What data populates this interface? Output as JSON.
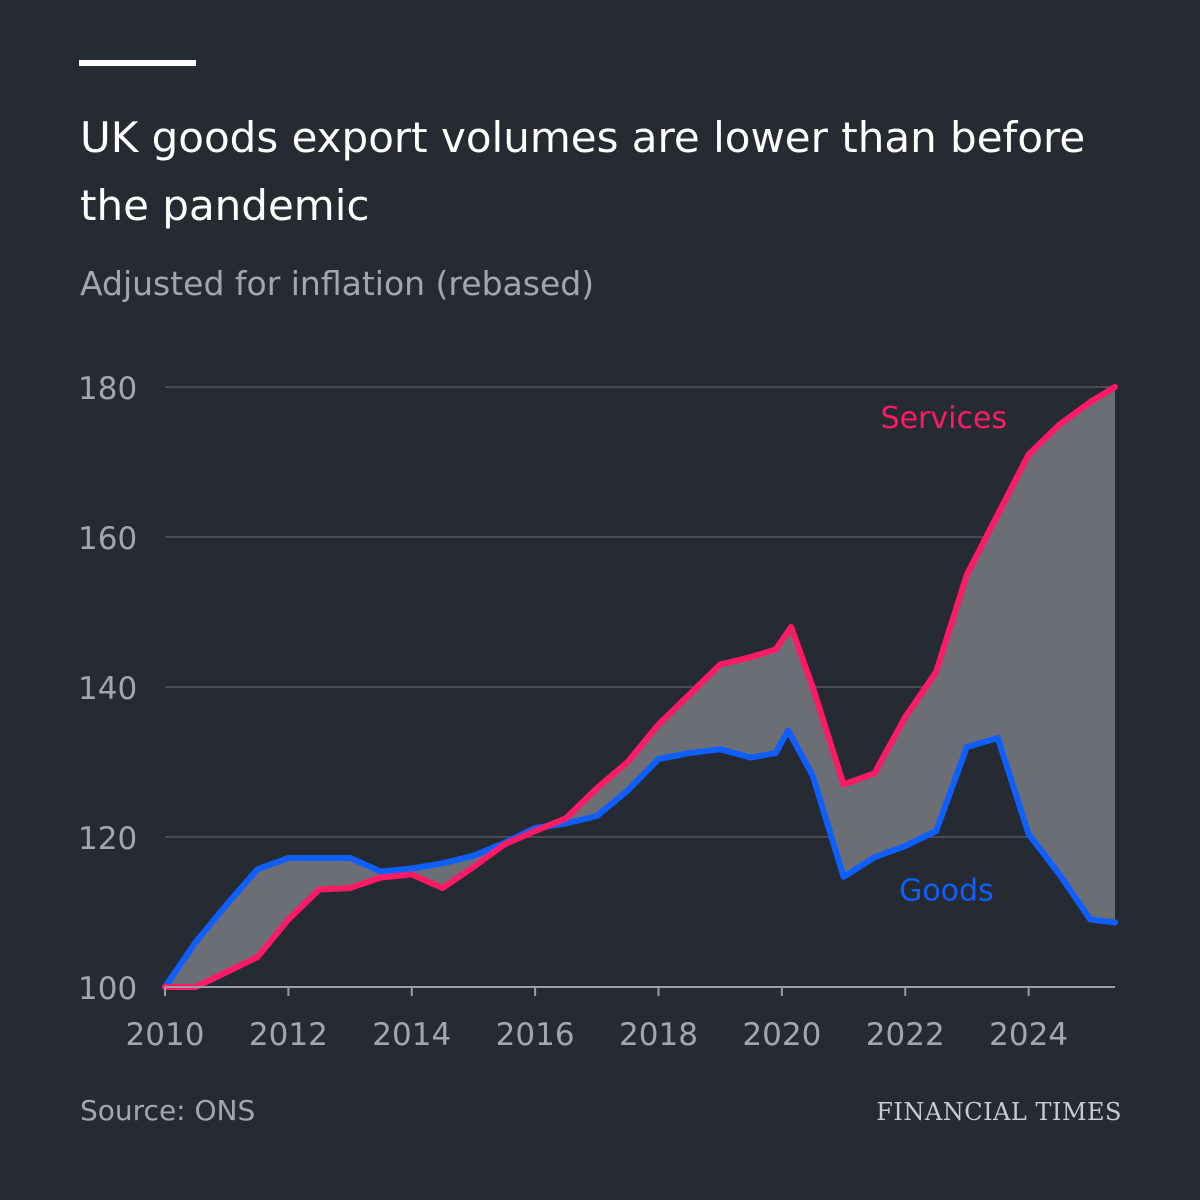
{
  "header": {
    "title": "UK goods export volumes are lower than before the pandemic",
    "subtitle": "Adjusted for inflation (rebased)"
  },
  "footer": {
    "source": "Source: ONS",
    "brand": "FINANCIAL TIMES"
  },
  "colors": {
    "background": "#262a33",
    "services": "#ff1a66",
    "goods": "#0f5fff",
    "gap_fill": "#6b6e75",
    "gridline": "#55585f",
    "tick_text": "#a3a6ad"
  },
  "chart_data": {
    "type": "line",
    "title": "UK goods export volumes are lower than before the pandemic",
    "subtitle": "Adjusted for inflation (rebased)",
    "xlabel": "",
    "ylabel": "",
    "xlim": [
      2010,
      2025.4
    ],
    "ylim": [
      100,
      180
    ],
    "x_ticks": [
      2010,
      2012,
      2014,
      2016,
      2018,
      2020,
      2022,
      2024
    ],
    "y_ticks": [
      100,
      120,
      140,
      160,
      180
    ],
    "grid": true,
    "fill_between_series": true,
    "series": [
      {
        "name": "Services",
        "color": "#ff1a66",
        "points": [
          [
            2010,
            100
          ],
          [
            2010.5,
            100
          ],
          [
            2011,
            102
          ],
          [
            2011.5,
            104
          ],
          [
            2012,
            109
          ],
          [
            2012.5,
            113
          ],
          [
            2013,
            113.2
          ],
          [
            2013.5,
            114.6
          ],
          [
            2014,
            115
          ],
          [
            2014.5,
            113.2
          ],
          [
            2015,
            116
          ],
          [
            2015.5,
            119
          ],
          [
            2016,
            120.8
          ],
          [
            2016.5,
            122.5
          ],
          [
            2017,
            126.5
          ],
          [
            2017.5,
            130
          ],
          [
            2018,
            135
          ],
          [
            2018.5,
            139
          ],
          [
            2019,
            143
          ],
          [
            2019.5,
            144
          ],
          [
            2019.9,
            145
          ],
          [
            2020.15,
            148
          ],
          [
            2020.5,
            140
          ],
          [
            2021,
            127
          ],
          [
            2021.5,
            128.5
          ],
          [
            2022,
            136
          ],
          [
            2022.5,
            142
          ],
          [
            2023,
            155
          ],
          [
            2023.5,
            163
          ],
          [
            2024,
            171
          ],
          [
            2024.5,
            175
          ],
          [
            2025,
            178
          ],
          [
            2025.4,
            180
          ]
        ]
      },
      {
        "name": "Goods",
        "color": "#0f5fff",
        "points": [
          [
            2010,
            100
          ],
          [
            2010.5,
            106
          ],
          [
            2011,
            111
          ],
          [
            2011.5,
            115.7
          ],
          [
            2012,
            117.2
          ],
          [
            2012.5,
            117.2
          ],
          [
            2013,
            117.2
          ],
          [
            2013.5,
            115.4
          ],
          [
            2014,
            115.8
          ],
          [
            2014.5,
            116.5
          ],
          [
            2015,
            117.5
          ],
          [
            2015.5,
            119.2
          ],
          [
            2016,
            121.2
          ],
          [
            2016.5,
            121.8
          ],
          [
            2017,
            122.8
          ],
          [
            2017.5,
            126.2
          ],
          [
            2018,
            130.4
          ],
          [
            2018.5,
            131.2
          ],
          [
            2019,
            131.7
          ],
          [
            2019.5,
            130.6
          ],
          [
            2019.9,
            131.2
          ],
          [
            2020.1,
            134.2
          ],
          [
            2020.5,
            128.2
          ],
          [
            2021,
            114.7
          ],
          [
            2021.5,
            117.3
          ],
          [
            2022,
            118.8
          ],
          [
            2022.5,
            120.8
          ],
          [
            2023,
            132
          ],
          [
            2023.5,
            133.2
          ],
          [
            2024,
            120.4
          ],
          [
            2024.5,
            115
          ],
          [
            2025,
            109
          ],
          [
            2025.4,
            108.6
          ]
        ]
      }
    ],
    "annotations": [
      {
        "text": "Services",
        "x": 2021.6,
        "y": 176,
        "series": "Services"
      },
      {
        "text": "Goods",
        "x": 2021.9,
        "y": 113,
        "series": "Goods"
      }
    ]
  }
}
